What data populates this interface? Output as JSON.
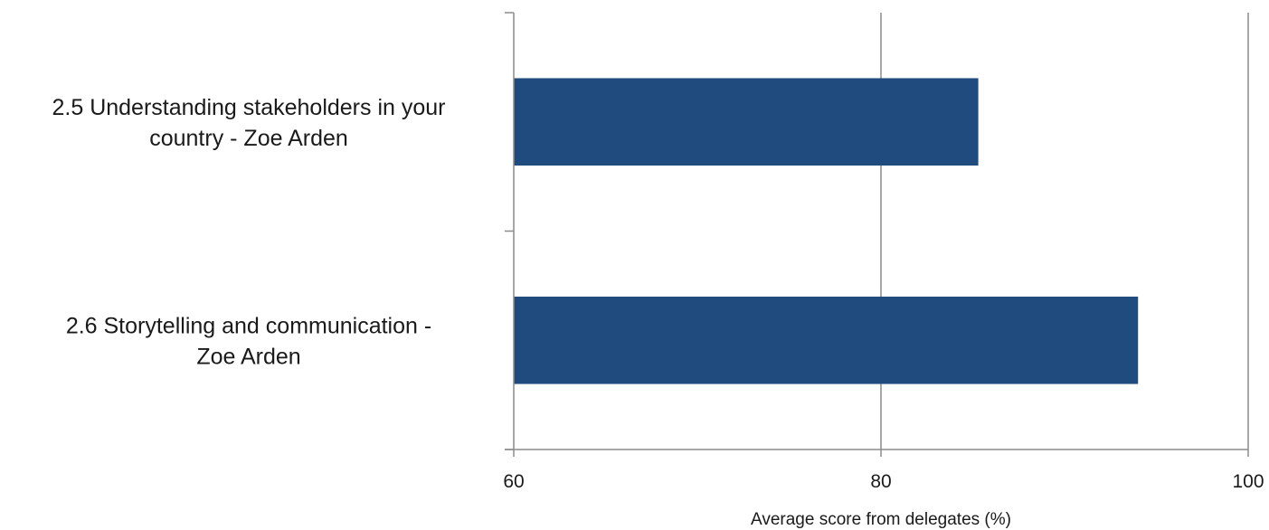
{
  "chart_data": {
    "type": "bar",
    "orientation": "horizontal",
    "categories": [
      [
        "2.5 Understanding stakeholders in your",
        "country - Zoe Arden"
      ],
      [
        "2.6 Storytelling and communication -",
        "Zoe Arden"
      ]
    ],
    "values": [
      85.3,
      94.0
    ],
    "xlim": [
      60,
      100
    ],
    "xticks": [
      60,
      80,
      100
    ],
    "xlabel": "Average score from delegates (%)",
    "title": "",
    "grid": "vertical",
    "colors": {
      "bar": "#1f4b7e",
      "axis": "#8c8c8c",
      "grid": "#8c8c8c"
    }
  }
}
